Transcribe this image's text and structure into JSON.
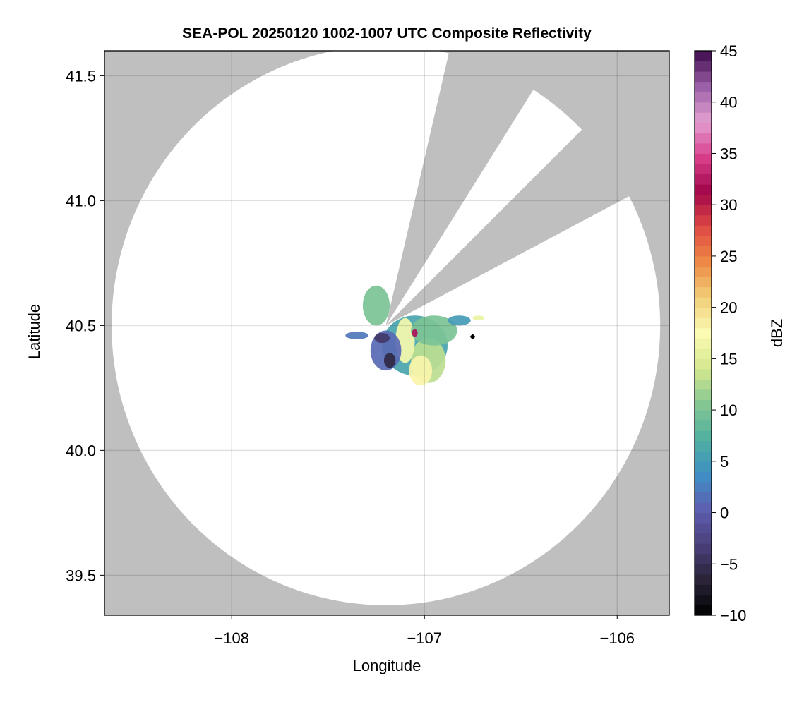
{
  "chart_data": {
    "type": "heatmap",
    "title": "SEA-POL 20250120 1002-1007 UTC Composite Reflectivity",
    "xlabel": "Longitude",
    "ylabel": "Latitude",
    "xlim": [
      -108.66,
      -105.73
    ],
    "ylim": [
      39.34,
      41.6
    ],
    "xticks": [
      -108,
      -107,
      -106
    ],
    "xtick_labels": [
      "−108",
      "−107",
      "−106"
    ],
    "yticks": [
      39.5,
      40.0,
      40.5,
      41.0,
      41.5
    ],
    "ytick_labels": [
      "39.5",
      "40.0",
      "40.5",
      "41.0",
      "41.5"
    ],
    "grid": true,
    "background_color": "#bfbfbf",
    "coverage": {
      "center": [
        -107.2,
        40.5
      ],
      "radius_deg_lat": 1.12,
      "blocked_sectors_deg": [
        [
          13,
          32
        ],
        [
          45,
          62
        ]
      ]
    },
    "echo_cells": [
      {
        "lon": -107.05,
        "lat": 40.42,
        "rx": 0.17,
        "ry": 0.12,
        "dbz": 6
      },
      {
        "lon": -106.98,
        "lat": 40.36,
        "rx": 0.09,
        "ry": 0.09,
        "dbz": 13
      },
      {
        "lon": -107.1,
        "lat": 40.44,
        "rx": 0.05,
        "ry": 0.09,
        "dbz": 17
      },
      {
        "lon": -106.95,
        "lat": 40.48,
        "rx": 0.12,
        "ry": 0.06,
        "dbz": 10
      },
      {
        "lon": -106.82,
        "lat": 40.52,
        "rx": 0.06,
        "ry": 0.02,
        "dbz": 5
      },
      {
        "lon": -107.25,
        "lat": 40.58,
        "rx": 0.07,
        "ry": 0.08,
        "dbz": 10
      },
      {
        "lon": -107.2,
        "lat": 40.4,
        "rx": 0.08,
        "ry": 0.08,
        "dbz": 1
      },
      {
        "lon": -107.18,
        "lat": 40.36,
        "rx": 0.03,
        "ry": 0.03,
        "dbz": -6
      },
      {
        "lon": -107.22,
        "lat": 40.45,
        "rx": 0.04,
        "ry": 0.02,
        "dbz": -4
      },
      {
        "lon": -107.35,
        "lat": 40.46,
        "rx": 0.06,
        "ry": 0.015,
        "dbz": 2
      },
      {
        "lon": -106.72,
        "lat": 40.53,
        "rx": 0.03,
        "ry": 0.01,
        "dbz": 16
      },
      {
        "lon": -107.02,
        "lat": 40.32,
        "rx": 0.06,
        "ry": 0.06,
        "dbz": 18
      },
      {
        "lon": -107.05,
        "lat": 40.47,
        "rx": 0.015,
        "ry": 0.015,
        "dbz": 32
      }
    ],
    "marker": {
      "lon": -106.75,
      "lat": 40.455,
      "shape": "diamond",
      "color": "#000000"
    },
    "colorbar": {
      "label": "dBZ",
      "range": [
        -10,
        45
      ],
      "ticks": [
        -10,
        -5,
        0,
        5,
        10,
        15,
        20,
        25,
        30,
        35,
        40,
        45
      ],
      "tick_labels": [
        "−10",
        "−5",
        "0",
        "5",
        "10",
        "15",
        "20",
        "25",
        "30",
        "35",
        "40",
        "45"
      ],
      "colormap_stops": [
        "#000000",
        "#2a2438",
        "#4a3f7a",
        "#5e5fb0",
        "#3f8fc4",
        "#4fb0a0",
        "#86c793",
        "#d4e88e",
        "#fbfbb4",
        "#f1cf78",
        "#ee8a46",
        "#e04a44",
        "#a1064a",
        "#d93f8c",
        "#e3a0d0",
        "#9a5fa6",
        "#3d0a4d"
      ]
    }
  }
}
